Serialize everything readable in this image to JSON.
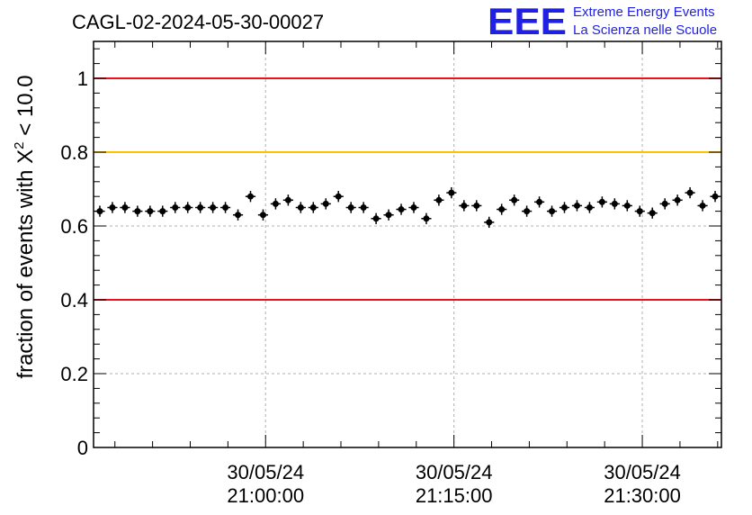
{
  "header": {
    "run_title": "CAGL-02-2024-05-30-00027",
    "logo_text": "EEE",
    "logo_line1": "Extreme Energy Events",
    "logo_line2": "La Scienza nelle Scuole"
  },
  "chart_data": {
    "type": "scatter",
    "title": "CAGL-02-2024-05-30-00027",
    "ylabel_main": "fraction of events with X",
    "ylabel_sup": "2",
    "ylabel_tail": " < 10.0",
    "xlabel": "",
    "ylim": [
      0,
      1.1
    ],
    "x_unit": "minutes after 30/05/24 20:00:00",
    "xlim": [
      46.3,
      96.3
    ],
    "x_ticks": [
      {
        "date": "30/05/24",
        "time": "21:00:00",
        "x": 60
      },
      {
        "date": "30/05/24",
        "time": "21:15:00",
        "x": 75
      },
      {
        "date": "30/05/24",
        "time": "21:30:00",
        "x": 90
      }
    ],
    "y_ticks": [
      0,
      0.2,
      0.4,
      0.6,
      0.8,
      1
    ],
    "y_tick_labels": [
      "0",
      "0.2",
      "0.4",
      "0.6",
      "0.8",
      "1"
    ],
    "grid": true,
    "reference_lines": [
      {
        "y": 1.0,
        "color": "#e8141a"
      },
      {
        "y": 0.8,
        "color": "#ffc000"
      },
      {
        "y": 0.4,
        "color": "#e8141a"
      }
    ],
    "series": [
      {
        "marker_color": "#000000",
        "x_halfwidth": 0.4,
        "y_error": 0.015,
        "x": [
          46.8,
          47.8,
          48.8,
          49.8,
          50.8,
          51.8,
          52.8,
          53.8,
          54.8,
          55.8,
          56.8,
          57.8,
          58.8,
          59.8,
          60.8,
          61.8,
          62.8,
          63.8,
          64.8,
          65.8,
          66.8,
          67.8,
          68.8,
          69.8,
          70.8,
          71.8,
          72.8,
          73.8,
          74.8,
          75.8,
          76.8,
          77.8,
          78.8,
          79.8,
          80.8,
          81.8,
          82.8,
          83.8,
          84.8,
          85.8,
          86.8,
          87.8,
          88.8,
          89.8,
          90.8,
          91.8,
          92.8,
          93.8,
          94.8,
          95.8
        ],
        "y": [
          0.64,
          0.65,
          0.65,
          0.64,
          0.64,
          0.64,
          0.65,
          0.65,
          0.65,
          0.65,
          0.65,
          0.63,
          0.68,
          0.63,
          0.66,
          0.67,
          0.65,
          0.65,
          0.66,
          0.68,
          0.65,
          0.65,
          0.62,
          0.63,
          0.645,
          0.65,
          0.62,
          0.67,
          0.69,
          0.655,
          0.655,
          0.61,
          0.645,
          0.67,
          0.64,
          0.665,
          0.64,
          0.65,
          0.655,
          0.65,
          0.665,
          0.66,
          0.655,
          0.64,
          0.635,
          0.66,
          0.67,
          0.69,
          0.655,
          0.68
        ]
      }
    ]
  }
}
